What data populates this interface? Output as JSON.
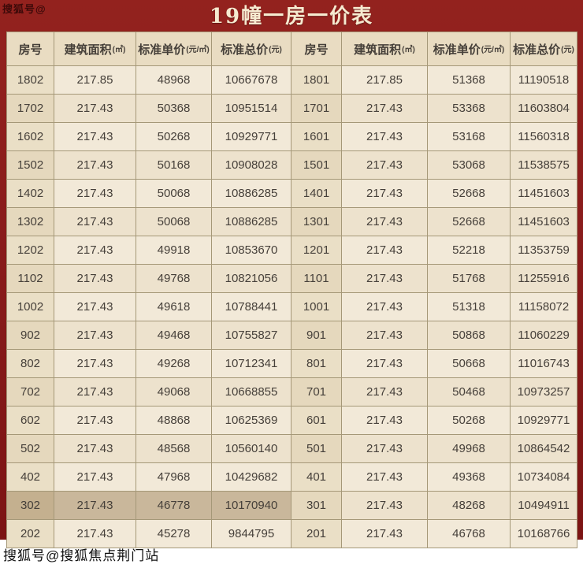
{
  "page": {
    "title": "19幢一房一价表",
    "watermark_top": "搜狐号@",
    "watermark_bottom": "搜狐号@搜狐焦点荆门站"
  },
  "colors": {
    "frame_maroon": "#8a1c1c",
    "title_text": "#f6ead0",
    "cell_background": "#f2e9d8",
    "header_background": "#e9dcc2",
    "grid_line": "#a59878",
    "highlight_row": "#c9b79b",
    "body_text": "#46403a"
  },
  "chart_data": {
    "type": "table",
    "title": "19幢一房一价表",
    "columns": [
      {
        "label": "房号",
        "unit": ""
      },
      {
        "label": "建筑面积",
        "unit": "(㎡)"
      },
      {
        "label": "标准单价",
        "unit": "(元/㎡)"
      },
      {
        "label": "标准总价",
        "unit": "(元)"
      },
      {
        "label": "房号",
        "unit": ""
      },
      {
        "label": "建筑面积",
        "unit": "(㎡)"
      },
      {
        "label": "标准单价",
        "unit": "(元/㎡)"
      },
      {
        "label": "标准总价",
        "unit": "(元)"
      }
    ],
    "rows": [
      {
        "cells": [
          "1802",
          "217.85",
          "48968",
          "10667678",
          "1801",
          "217.85",
          "51368",
          "11190518"
        ]
      },
      {
        "cells": [
          "1702",
          "217.43",
          "50368",
          "10951514",
          "1701",
          "217.43",
          "53368",
          "11603804"
        ]
      },
      {
        "cells": [
          "1602",
          "217.43",
          "50268",
          "10929771",
          "1601",
          "217.43",
          "53168",
          "11560318"
        ]
      },
      {
        "cells": [
          "1502",
          "217.43",
          "50168",
          "10908028",
          "1501",
          "217.43",
          "53068",
          "11538575"
        ]
      },
      {
        "cells": [
          "1402",
          "217.43",
          "50068",
          "10886285",
          "1401",
          "217.43",
          "52668",
          "11451603"
        ]
      },
      {
        "cells": [
          "1302",
          "217.43",
          "50068",
          "10886285",
          "1301",
          "217.43",
          "52668",
          "11451603"
        ]
      },
      {
        "cells": [
          "1202",
          "217.43",
          "49918",
          "10853670",
          "1201",
          "217.43",
          "52218",
          "11353759"
        ]
      },
      {
        "cells": [
          "1102",
          "217.43",
          "49768",
          "10821056",
          "1101",
          "217.43",
          "51768",
          "11255916"
        ]
      },
      {
        "cells": [
          "1002",
          "217.43",
          "49618",
          "10788441",
          "1001",
          "217.43",
          "51318",
          "11158072"
        ]
      },
      {
        "cells": [
          "902",
          "217.43",
          "49468",
          "10755827",
          "901",
          "217.43",
          "50868",
          "11060229"
        ]
      },
      {
        "cells": [
          "802",
          "217.43",
          "49268",
          "10712341",
          "801",
          "217.43",
          "50668",
          "11016743"
        ]
      },
      {
        "cells": [
          "702",
          "217.43",
          "49068",
          "10668855",
          "701",
          "217.43",
          "50468",
          "10973257"
        ]
      },
      {
        "cells": [
          "602",
          "217.43",
          "48868",
          "10625369",
          "601",
          "217.43",
          "50268",
          "10929771"
        ]
      },
      {
        "cells": [
          "502",
          "217.43",
          "48568",
          "10560140",
          "501",
          "217.43",
          "49968",
          "10864542"
        ]
      },
      {
        "cells": [
          "402",
          "217.43",
          "47968",
          "10429682",
          "401",
          "217.43",
          "49368",
          "10734084"
        ]
      },
      {
        "cells": [
          "302",
          "217.43",
          "46778",
          "10170940",
          "301",
          "217.43",
          "48268",
          "10494911"
        ],
        "highlight_left": true
      },
      {
        "cells": [
          "202",
          "217.43",
          "45278",
          "9844795",
          "201",
          "217.43",
          "46768",
          "10168766"
        ]
      }
    ]
  }
}
